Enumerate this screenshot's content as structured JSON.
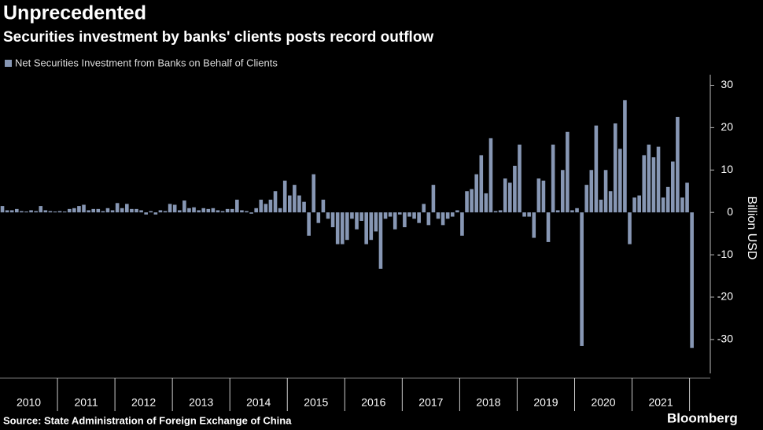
{
  "chart_data": {
    "type": "bar",
    "title": "Unprecedented",
    "subtitle": "Securities investment by banks' clients posts record outflow",
    "legend": "Net Securities Investment from Banks on Behalf of Clients",
    "y_label": "Billion USD",
    "source": "Source: State Administration of Foreign Exchange of China",
    "brand": "Bloomberg",
    "color": "#8797b4",
    "year_labels": [
      "2010",
      "2011",
      "2012",
      "2013",
      "2014",
      "2015",
      "2016",
      "2017",
      "2018",
      "2019",
      "2020",
      "2021"
    ],
    "values": [
      1.5,
      0.5,
      0.5,
      0.8,
      0.3,
      0.2,
      0.5,
      0.3,
      1.5,
      0.5,
      0.3,
      0.2,
      0.3,
      0.2,
      0.8,
      1,
      1.5,
      1.8,
      0.5,
      0.8,
      0.8,
      0.3,
      1,
      0.5,
      2.2,
      1,
      2,
      0.8,
      0.8,
      0.5,
      -0.5,
      0.3,
      -0.5,
      0.5,
      0.3,
      2,
      1.8,
      0.5,
      2.8,
      1,
      1.2,
      0.5,
      1,
      0.8,
      1,
      0.5,
      0.3,
      0.8,
      0.8,
      3,
      0.5,
      0.3,
      -0.3,
      1,
      3,
      2,
      3,
      5,
      1,
      7.5,
      4,
      6.5,
      4,
      2.5,
      -5.5,
      9,
      -2.5,
      3,
      -1.5,
      -3.5,
      -7.5,
      -7.5,
      -6.5,
      -1.5,
      -4,
      -2,
      -7.5,
      -6.5,
      -4.5,
      -13.3,
      -1.5,
      -1,
      -4,
      -0.5,
      -3.5,
      -1,
      -1.5,
      -2.5,
      2,
      -3,
      6.5,
      -1.5,
      -3,
      -1.5,
      -1,
      0.5,
      -5.5,
      5,
      5.5,
      9,
      13.5,
      4.5,
      17.5,
      0.3,
      0.5,
      8,
      7,
      11,
      16,
      -1,
      -1,
      -6,
      8,
      7.5,
      -7,
      16,
      0.5,
      10,
      19,
      0.5,
      1,
      -31.5,
      6.5,
      10,
      20.5,
      3,
      10,
      5,
      21,
      15,
      26.5,
      -7.5,
      3.5,
      4,
      13.5,
      16,
      13,
      15.5,
      3.5,
      6,
      12,
      22.5,
      3.5,
      7,
      -32
    ],
    "ylim": [
      -38,
      32.5
    ],
    "yticks": [
      -30,
      -20,
      -10,
      0,
      10,
      20,
      30
    ],
    "grid": false
  }
}
